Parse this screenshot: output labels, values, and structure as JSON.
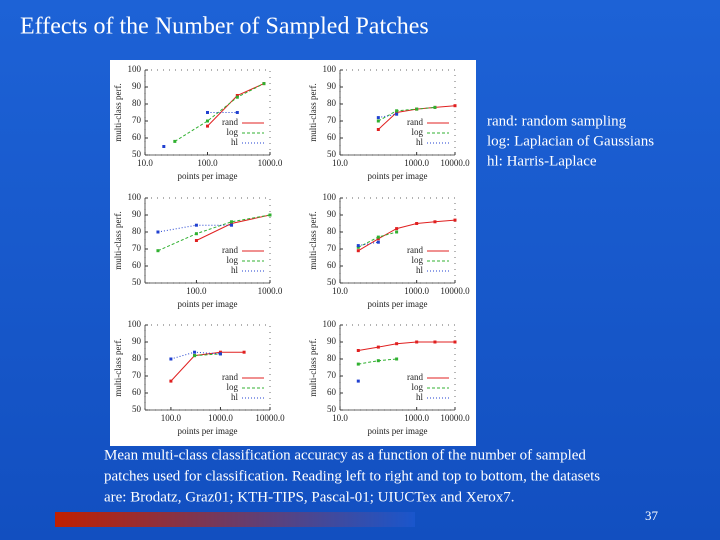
{
  "title": "Effects of the Number of Sampled Patches",
  "notes": [
    "rand: random sampling",
    "log: Laplacian of Gaussians",
    "hl: Harris-Laplace"
  ],
  "caption": [
    "Mean multi-class classification accuracy as a function of the number of sampled",
    "patches used for classification. Reading left to right and top to bottom, the datasets",
    "are: Brodatz, Graz01; KTH-TIPS, Pascal-01; UIUCTex and Xerox7."
  ],
  "page_number": "37",
  "chart_data": [
    {
      "type": "line",
      "xlabel": "points per image",
      "ylabel": "multi-class perf.",
      "log_x": true,
      "legend": "lower right",
      "x": [
        20,
        30,
        100,
        300,
        800
      ],
      "xlim": [
        10,
        1000
      ],
      "ylim": [
        50,
        100
      ],
      "xticks": [
        {
          "value": 10,
          "label": "10.0"
        },
        {
          "value": 100,
          "label": "100.0"
        },
        {
          "value": 1000,
          "label": "1000.0"
        }
      ],
      "yticks": [
        50,
        60,
        70,
        80,
        90,
        100
      ],
      "series": [
        {
          "name": "rand",
          "color": "#e02020",
          "values": [
            null,
            null,
            67,
            85,
            92
          ]
        },
        {
          "name": "log",
          "color": "#30b030",
          "values": [
            null,
            58,
            70,
            84,
            92
          ]
        },
        {
          "name": "hl",
          "color": "#2040d0",
          "values": [
            55,
            null,
            75,
            75,
            null
          ]
        }
      ]
    },
    {
      "type": "line",
      "xlabel": "points per image",
      "ylabel": "multi-class perf.",
      "log_x": true,
      "legend": "lower right",
      "x": [
        100,
        300,
        1000,
        3000,
        10000
      ],
      "xlim": [
        10,
        10000
      ],
      "ylim": [
        50,
        100
      ],
      "xticks": [
        {
          "value": 10,
          "label": "10.0"
        },
        {
          "value": 1000,
          "label": "1000.0"
        },
        {
          "value": 10000,
          "label": "10000.0"
        }
      ],
      "yticks": [
        50,
        60,
        70,
        80,
        90,
        100
      ],
      "series": [
        {
          "name": "rand",
          "color": "#e02020",
          "values": [
            65,
            75,
            77,
            78,
            79
          ]
        },
        {
          "name": "log",
          "color": "#30b030",
          "values": [
            70,
            76,
            77,
            78,
            null
          ]
        },
        {
          "name": "hl",
          "color": "#2040d0",
          "values": [
            72,
            74,
            null,
            null,
            null
          ]
        }
      ]
    },
    {
      "type": "line",
      "xlabel": "points per image",
      "ylabel": "multi-class perf.",
      "log_x": true,
      "legend": "lower right",
      "x": [
        30,
        100,
        300,
        1000
      ],
      "xlim": [
        20,
        1000
      ],
      "ylim": [
        50,
        100
      ],
      "xticks": [
        {
          "value": 100,
          "label": "100.0"
        },
        {
          "value": 1000,
          "label": "1000.0"
        }
      ],
      "yticks": [
        50,
        60,
        70,
        80,
        90,
        100
      ],
      "series": [
        {
          "name": "rand",
          "color": "#e02020",
          "values": [
            null,
            75,
            85,
            90
          ]
        },
        {
          "name": "log",
          "color": "#30b030",
          "values": [
            69,
            79,
            86,
            90
          ]
        },
        {
          "name": "hl",
          "color": "#2040d0",
          "values": [
            80,
            84,
            84,
            null
          ]
        }
      ]
    },
    {
      "type": "line",
      "xlabel": "points per image",
      "ylabel": "multi-class perf.",
      "log_x": true,
      "legend": "lower right",
      "x": [
        30,
        100,
        300,
        1000,
        3000,
        10000
      ],
      "xlim": [
        10,
        10000
      ],
      "ylim": [
        50,
        100
      ],
      "xticks": [
        {
          "value": 10,
          "label": "10.0"
        },
        {
          "value": 1000,
          "label": "1000.0"
        },
        {
          "value": 10000,
          "label": "10000.0"
        }
      ],
      "yticks": [
        50,
        60,
        70,
        80,
        90,
        100
      ],
      "series": [
        {
          "name": "rand",
          "color": "#e02020",
          "values": [
            69,
            76,
            82,
            85,
            86,
            87
          ]
        },
        {
          "name": "log",
          "color": "#30b030",
          "values": [
            71,
            77,
            80,
            null,
            null,
            null
          ]
        },
        {
          "name": "hl",
          "color": "#2040d0",
          "values": [
            72,
            74,
            null,
            null,
            null,
            null
          ]
        }
      ]
    },
    {
      "type": "line",
      "xlabel": "points per image",
      "ylabel": "multi-class perf.",
      "log_x": true,
      "legend": "lower right",
      "x": [
        100,
        300,
        1000,
        3000
      ],
      "xlim": [
        30,
        10000
      ],
      "ylim": [
        50,
        100
      ],
      "xticks": [
        {
          "value": 100,
          "label": "100.0"
        },
        {
          "value": 1000,
          "label": "1000.0"
        },
        {
          "value": 10000,
          "label": "10000.0"
        }
      ],
      "yticks": [
        50,
        60,
        70,
        80,
        90,
        100
      ],
      "series": [
        {
          "name": "rand",
          "color": "#e02020",
          "values": [
            67,
            82,
            84,
            84
          ]
        },
        {
          "name": "log",
          "color": "#30b030",
          "values": [
            null,
            82,
            83,
            null
          ]
        },
        {
          "name": "hl",
          "color": "#2040d0",
          "values": [
            80,
            84,
            83,
            null
          ]
        }
      ]
    },
    {
      "type": "line",
      "xlabel": "points per image",
      "ylabel": "multi-class perf.",
      "log_x": true,
      "legend": "lower right",
      "x": [
        30,
        100,
        300,
        1000,
        3000,
        10000
      ],
      "xlim": [
        10,
        10000
      ],
      "ylim": [
        50,
        100
      ],
      "xticks": [
        {
          "value": 10,
          "label": "10.0"
        },
        {
          "value": 1000,
          "label": "1000.0"
        },
        {
          "value": 10000,
          "label": "10000.0"
        }
      ],
      "yticks": [
        50,
        60,
        70,
        80,
        90,
        100
      ],
      "series": [
        {
          "name": "rand",
          "color": "#e02020",
          "values": [
            85,
            87,
            89,
            90,
            90,
            90
          ]
        },
        {
          "name": "log",
          "color": "#30b030",
          "values": [
            77,
            79,
            80,
            null,
            null,
            null
          ]
        },
        {
          "name": "hl",
          "color": "#2040d0",
          "values": [
            67,
            null,
            null,
            null,
            null,
            null
          ]
        }
      ]
    }
  ]
}
